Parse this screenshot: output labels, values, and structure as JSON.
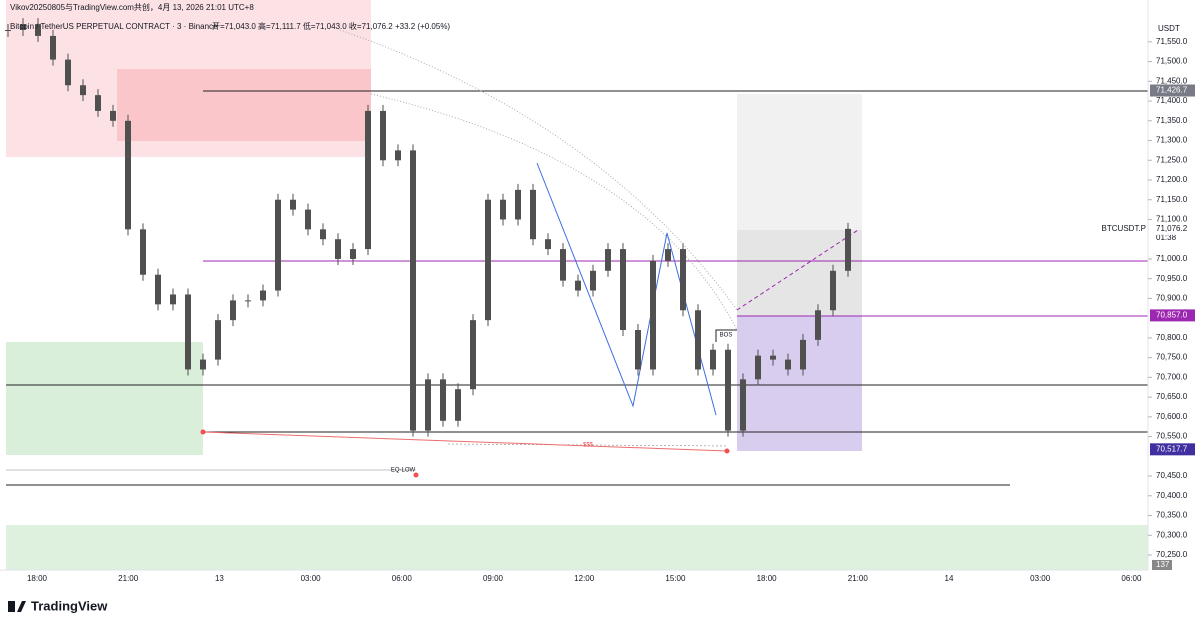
{
  "chart_data": {
    "type": "candlestick",
    "header": "Vikov20250805与TradingView.com共创，4月 13, 2026 21:01 UTC+8",
    "title": "Bitcoin / TetherUS PERPETUAL CONTRACT · 3 · Binance",
    "ohlc_text": "开=71,043.0 高=71,111.7 低=71,043.0 收=71,076.2 +33.2 (+0.05%)",
    "currency": "USDT",
    "symbol": "BTCUSDT.P",
    "countdown": "01:38",
    "annotations": [
      "BOS",
      "EQ-LOW",
      "$$$"
    ],
    "volume_label": "137",
    "brand": "TradingView",
    "up_color": "#505050",
    "values": [
      71580,
      71595,
      71565,
      71505,
      71440,
      71415,
      71375,
      71350,
      71075,
      70960,
      70885,
      70910,
      70720,
      70745,
      70845,
      70895,
      70895,
      70920,
      71150,
      71125,
      71075,
      71050,
      71000,
      71025,
      71375,
      71250,
      71275,
      70565,
      70695,
      70590,
      70670,
      70845,
      71150,
      71100,
      71175,
      71050,
      71025,
      70945,
      70920,
      70970,
      71025,
      70820,
      70720,
      70995,
      71025,
      70870,
      70720,
      70770,
      70565,
      70695,
      70755,
      70745,
      70720,
      70795,
      70870,
      70970,
      71076.2
    ],
    "ylim": [
      70212,
      71656
    ],
    "yticks": [
      {
        "value": 71550,
        "label": "71,550.0"
      },
      {
        "value": 71500,
        "label": "71,500.0"
      },
      {
        "value": 71450,
        "label": "71,450.0"
      },
      {
        "value": 71400,
        "label": "71,400.0"
      },
      {
        "value": 71350,
        "label": "71,350.0"
      },
      {
        "value": 71300,
        "label": "71,300.0"
      },
      {
        "value": 71250,
        "label": "71,250.0"
      },
      {
        "value": 71200,
        "label": "71,200.0"
      },
      {
        "value": 71150,
        "label": "71,150.0"
      },
      {
        "value": 71100,
        "label": "71,100.0"
      },
      {
        "value": 71000,
        "label": "71,000.0"
      },
      {
        "value": 70950,
        "label": "70,950.0"
      },
      {
        "value": 70900,
        "label": "70,900.0"
      },
      {
        "value": 70800,
        "label": "70,800.0"
      },
      {
        "value": 70750,
        "label": "70,750.0"
      },
      {
        "value": 70700,
        "label": "70,700.0"
      },
      {
        "value": 70650,
        "label": "70,650.0"
      },
      {
        "value": 70600,
        "label": "70,600.0"
      },
      {
        "value": 70550,
        "label": "70,550.0"
      },
      {
        "value": 70450,
        "label": "70,450.0"
      },
      {
        "value": 70400,
        "label": "70,400.0"
      },
      {
        "value": 70350,
        "label": "70,350.0"
      },
      {
        "value": 70300,
        "label": "70,300.0"
      },
      {
        "value": 70250,
        "label": "70,250.0"
      }
    ],
    "price_labels": [
      {
        "value": 71426.7,
        "label": "71,426.7",
        "color": "#787b86"
      },
      {
        "value": 71076.2,
        "label": "71,076.2",
        "color": "#ffffff"
      },
      {
        "value": 70857,
        "label": "70,857.0",
        "color": "#9c27b0"
      },
      {
        "value": 70517.7,
        "label": "70,517.7",
        "color": "#3f2fa0"
      }
    ],
    "xtick_labels": [
      "18:00",
      "21:00",
      "13",
      "03:00",
      "06:00",
      "09:00",
      "12:00",
      "15:00",
      "18:00",
      "21:00",
      "14",
      "03:00",
      "06:00"
    ]
  }
}
